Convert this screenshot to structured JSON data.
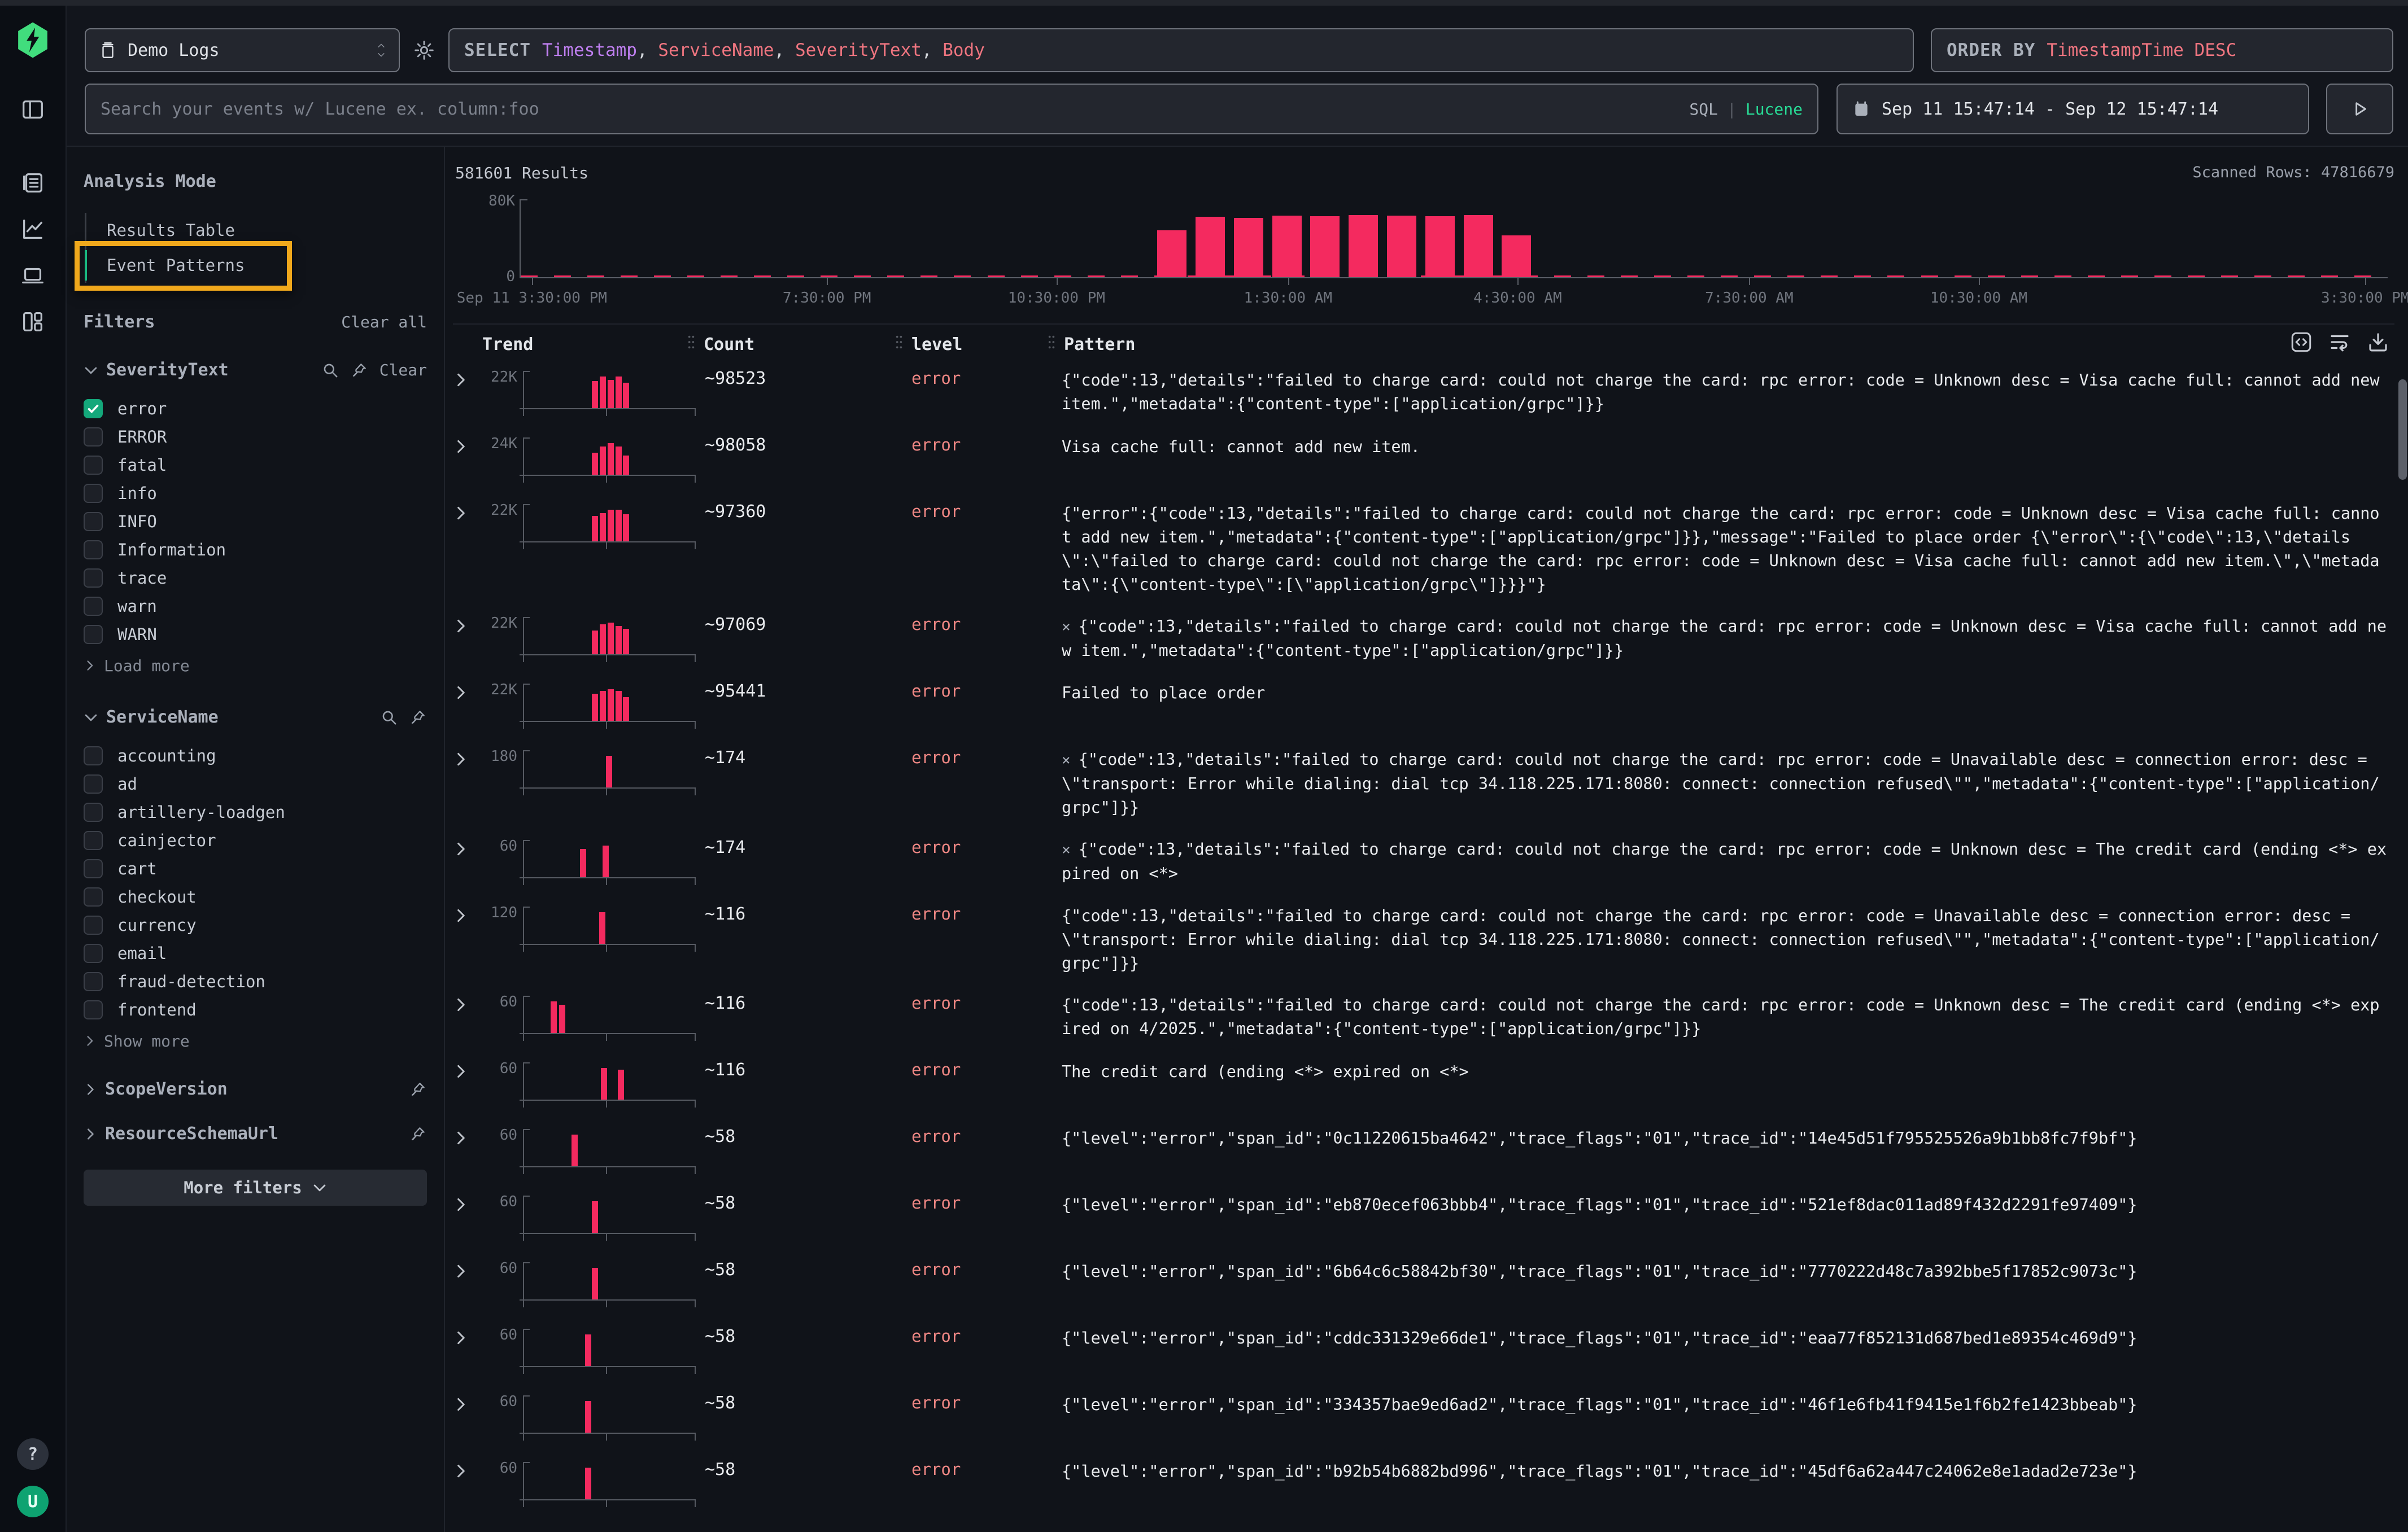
{
  "topbar": {
    "source_label": "Demo Logs",
    "query": {
      "keyword": "SELECT",
      "fields": [
        {
          "text": "Timestamp",
          "color": "#bf7ff0"
        },
        {
          "text": "ServiceName",
          "color": "#ef7580"
        },
        {
          "text": "SeverityText",
          "color": "#ef7580"
        },
        {
          "text": "Body",
          "color": "#ef7580"
        }
      ],
      "comma_color": "#d6d9de"
    },
    "order": {
      "keyword": "ORDER BY",
      "value": "TimestampTime DESC"
    }
  },
  "search": {
    "placeholder": "Search your events w/ Lucene ex. column:foo",
    "modes": [
      "SQL",
      "Lucene"
    ],
    "active_mode": "Lucene",
    "date_range": "Sep 11 15:47:14 - Sep 12 15:47:14"
  },
  "sidebar": {
    "analysis_mode_title": "Analysis Mode",
    "mode_items": [
      {
        "label": "Results Table",
        "active": false,
        "highlight": false
      },
      {
        "label": "Event Patterns",
        "active": true,
        "highlight": true
      }
    ],
    "filters_title": "Filters",
    "clear_all_label": "Clear all",
    "groups": [
      {
        "name": "SeverityText",
        "expanded": true,
        "has_search": true,
        "has_pin": true,
        "clear_label": "Clear",
        "options": [
          {
            "label": "error",
            "checked": true
          },
          {
            "label": "ERROR",
            "checked": false
          },
          {
            "label": "fatal",
            "checked": false
          },
          {
            "label": "info",
            "checked": false
          },
          {
            "label": "INFO",
            "checked": false
          },
          {
            "label": "Information",
            "checked": false
          },
          {
            "label": "trace",
            "checked": false
          },
          {
            "label": "warn",
            "checked": false
          },
          {
            "label": "WARN",
            "checked": false
          }
        ],
        "more_label": "Load more"
      },
      {
        "name": "ServiceName",
        "expanded": true,
        "has_search": true,
        "has_pin": true,
        "clear_label": "",
        "options": [
          {
            "label": "accounting",
            "checked": false
          },
          {
            "label": "ad",
            "checked": false
          },
          {
            "label": "artillery-loadgen",
            "checked": false
          },
          {
            "label": "cainjector",
            "checked": false
          },
          {
            "label": "cart",
            "checked": false
          },
          {
            "label": "checkout",
            "checked": false
          },
          {
            "label": "currency",
            "checked": false
          },
          {
            "label": "email",
            "checked": false
          },
          {
            "label": "fraud-detection",
            "checked": false
          },
          {
            "label": "frontend",
            "checked": false
          }
        ],
        "more_label": "Show more"
      }
    ],
    "collapsed_groups": [
      {
        "name": "ScopeVersion"
      },
      {
        "name": "ResourceSchemaUrl"
      }
    ],
    "more_filters_label": "More filters"
  },
  "results": {
    "count_label": "581601 Results",
    "scanned_label": "Scanned Rows: 47816679"
  },
  "chart_data": {
    "type": "bar",
    "title": "581601 Results histogram",
    "ylabel": "",
    "xlabel": "",
    "ylim": [
      0,
      80000
    ],
    "yticks": [
      "80K",
      "0"
    ],
    "grid": false,
    "legend": "none",
    "bar_color": "#f42a5f",
    "xticks": [
      {
        "label": "Sep 11 3:30:00 PM",
        "f": 0.006
      },
      {
        "label": "7:30:00 PM",
        "f": 0.164
      },
      {
        "label": "10:30:00 PM",
        "f": 0.287
      },
      {
        "label": "1:30:00 AM",
        "f": 0.411
      },
      {
        "label": "4:30:00 AM",
        "f": 0.534
      },
      {
        "label": "7:30:00 AM",
        "f": 0.658
      },
      {
        "label": "10:30:00 AM",
        "f": 0.781
      },
      {
        "label": "3:30:00 PM",
        "f": 0.988
      }
    ],
    "bars": [
      {
        "f": 0.341,
        "v": 48000
      },
      {
        "f": 0.3615,
        "v": 62000
      },
      {
        "f": 0.382,
        "v": 61000
      },
      {
        "f": 0.4025,
        "v": 63000
      },
      {
        "f": 0.423,
        "v": 62500
      },
      {
        "f": 0.4435,
        "v": 64000
      },
      {
        "f": 0.464,
        "v": 63000
      },
      {
        "f": 0.4845,
        "v": 62500
      },
      {
        "f": 0.505,
        "v": 64000
      },
      {
        "f": 0.5255,
        "v": 43000
      }
    ],
    "baseline_bars": {
      "count": 56,
      "v": 1600
    }
  },
  "table": {
    "columns": [
      "Trend",
      "Count",
      "level",
      "Pattern"
    ],
    "rows": [
      {
        "trend_max": "22K",
        "spark": [
          [
            0.4,
            0.85
          ],
          [
            0.445,
            1
          ],
          [
            0.49,
            0.9
          ],
          [
            0.535,
            1
          ],
          [
            0.58,
            0.8
          ]
        ],
        "count": "~98523",
        "level": "error",
        "x_prefix": false,
        "pattern": "{\"code\":13,\"details\":\"failed to charge card: could not charge the card: rpc error: code = Unknown desc = Visa cache full: cannot add new item.\",\"metadata\":{\"content-type\":[\"application/grpc\"]}}"
      },
      {
        "trend_max": "24K",
        "spark": [
          [
            0.4,
            0.7
          ],
          [
            0.445,
            0.9
          ],
          [
            0.49,
            1
          ],
          [
            0.535,
            0.9
          ],
          [
            0.58,
            0.6
          ]
        ],
        "count": "~98058",
        "level": "error",
        "x_prefix": false,
        "pattern": "Visa cache full: cannot add new item."
      },
      {
        "trend_max": "22K",
        "spark": [
          [
            0.4,
            0.8
          ],
          [
            0.445,
            0.9
          ],
          [
            0.49,
            1
          ],
          [
            0.535,
            1
          ],
          [
            0.58,
            0.85
          ]
        ],
        "count": "~97360",
        "level": "error",
        "x_prefix": false,
        "pattern": "{\"error\":{\"code\":13,\"details\":\"failed to charge card: could not charge the card: rpc error: code = Unknown desc = Visa cache full: cannot add new item.\",\"metadata\":{\"content-type\":[\"application/grpc\"]}},\"message\":\"Failed to place order {\\\"error\\\":{\\\"code\\\":13,\\\"details\\\":\\\"failed to charge card: could not charge the card: rpc error: code = Unknown desc = Visa cache full: cannot add new item.\\\",\\\"metadata\\\":{\\\"content-type\\\":[\\\"application/grpc\\\"]}}}\"}"
      },
      {
        "trend_max": "22K",
        "spark": [
          [
            0.4,
            0.75
          ],
          [
            0.445,
            0.95
          ],
          [
            0.49,
            1
          ],
          [
            0.535,
            0.9
          ],
          [
            0.58,
            0.8
          ]
        ],
        "count": "~97069",
        "level": "error",
        "x_prefix": true,
        "pattern": "{\"code\":13,\"details\":\"failed to charge card: could not charge the card: rpc error: code = Unknown desc = Visa cache full: cannot add new item.\",\"metadata\":{\"content-type\":[\"application/grpc\"]}}"
      },
      {
        "trend_max": "22K",
        "spark": [
          [
            0.4,
            0.85
          ],
          [
            0.445,
            0.95
          ],
          [
            0.49,
            1
          ],
          [
            0.535,
            0.95
          ],
          [
            0.58,
            0.75
          ]
        ],
        "count": "~95441",
        "level": "error",
        "x_prefix": false,
        "pattern": "Failed to place order"
      },
      {
        "trend_max": "180",
        "spark": [
          [
            0.48,
            1
          ]
        ],
        "count": "~174",
        "level": "error",
        "x_prefix": true,
        "pattern": "{\"code\":13,\"details\":\"failed to charge card: could not charge the card: rpc error: code = Unavailable desc = connection error: desc = \\\"transport: Error while dialing: dial tcp 34.118.225.171:8080: connect: connection refused\\\"\",\"metadata\":{\"content-type\":[\"application/grpc\"]}}"
      },
      {
        "trend_max": "60",
        "spark": [
          [
            0.33,
            0.9
          ],
          [
            0.46,
            1
          ]
        ],
        "count": "~174",
        "level": "error",
        "x_prefix": true,
        "pattern": "{\"code\":13,\"details\":\"failed to charge card: could not charge the card: rpc error: code = Unknown desc = The credit card (ending <*> expired on <*>"
      },
      {
        "trend_max": "120",
        "spark": [
          [
            0.44,
            1
          ]
        ],
        "count": "~116",
        "level": "error",
        "x_prefix": false,
        "pattern": "{\"code\":13,\"details\":\"failed to charge card: could not charge the card: rpc error: code = Unavailable desc = connection error: desc = \\\"transport: Error while dialing: dial tcp 34.118.225.171:8080: connect: connection refused\\\"\",\"metadata\":{\"content-type\":[\"application/grpc\"]}}"
      },
      {
        "trend_max": "60",
        "spark": [
          [
            0.16,
            1
          ],
          [
            0.21,
            0.9
          ]
        ],
        "count": "~116",
        "level": "error",
        "x_prefix": false,
        "pattern": "{\"code\":13,\"details\":\"failed to charge card: could not charge the card: rpc error: code = Unknown desc = The credit card (ending <*> expired on 4/2025.\",\"metadata\":{\"content-type\":[\"application/grpc\"]}}"
      },
      {
        "trend_max": "60",
        "spark": [
          [
            0.45,
            1
          ],
          [
            0.55,
            0.95
          ]
        ],
        "count": "~116",
        "level": "error",
        "x_prefix": false,
        "pattern": "The credit card (ending <*> expired on <*>"
      },
      {
        "trend_max": "60",
        "spark": [
          [
            0.28,
            1
          ]
        ],
        "count": "~58",
        "level": "error",
        "x_prefix": false,
        "pattern": "{\"level\":\"error\",\"span_id\":\"0c11220615ba4642\",\"trace_flags\":\"01\",\"trace_id\":\"14e45d51f795525526a9b1bb8fc7f9bf\"}"
      },
      {
        "trend_max": "60",
        "spark": [
          [
            0.4,
            1
          ]
        ],
        "count": "~58",
        "level": "error",
        "x_prefix": false,
        "pattern": "{\"level\":\"error\",\"span_id\":\"eb870ecef063bbb4\",\"trace_flags\":\"01\",\"trace_id\":\"521ef8dac011ad89f432d2291fe97409\"}"
      },
      {
        "trend_max": "60",
        "spark": [
          [
            0.4,
            1
          ]
        ],
        "count": "~58",
        "level": "error",
        "x_prefix": false,
        "pattern": "{\"level\":\"error\",\"span_id\":\"6b64c6c58842bf30\",\"trace_flags\":\"01\",\"trace_id\":\"7770222d48c7a392bbe5f17852c9073c\"}"
      },
      {
        "trend_max": "60",
        "spark": [
          [
            0.36,
            1
          ]
        ],
        "count": "~58",
        "level": "error",
        "x_prefix": false,
        "pattern": "{\"level\":\"error\",\"span_id\":\"cddc331329e66de1\",\"trace_flags\":\"01\",\"trace_id\":\"eaa77f852131d687bed1e89354c469d9\"}"
      },
      {
        "trend_max": "60",
        "spark": [
          [
            0.36,
            1
          ]
        ],
        "count": "~58",
        "level": "error",
        "x_prefix": false,
        "pattern": "{\"level\":\"error\",\"span_id\":\"334357bae9ed6ad2\",\"trace_flags\":\"01\",\"trace_id\":\"46f1e6fb41f9415e1f6b2fe1423bbeab\"}"
      },
      {
        "trend_max": "60",
        "spark": [
          [
            0.36,
            1
          ]
        ],
        "count": "~58",
        "level": "error",
        "x_prefix": false,
        "pattern": "{\"level\":\"error\",\"span_id\":\"b92b54b6882bd996\",\"trace_flags\":\"01\",\"trace_id\":\"45df6a62a447c24062e8e1adad2e723e\"}"
      }
    ]
  },
  "colors": {
    "accent_green": "#28d995",
    "bar_pink": "#f42a5f",
    "error_text": "#ef8784",
    "highlight_yellow": "#f0a81c"
  }
}
